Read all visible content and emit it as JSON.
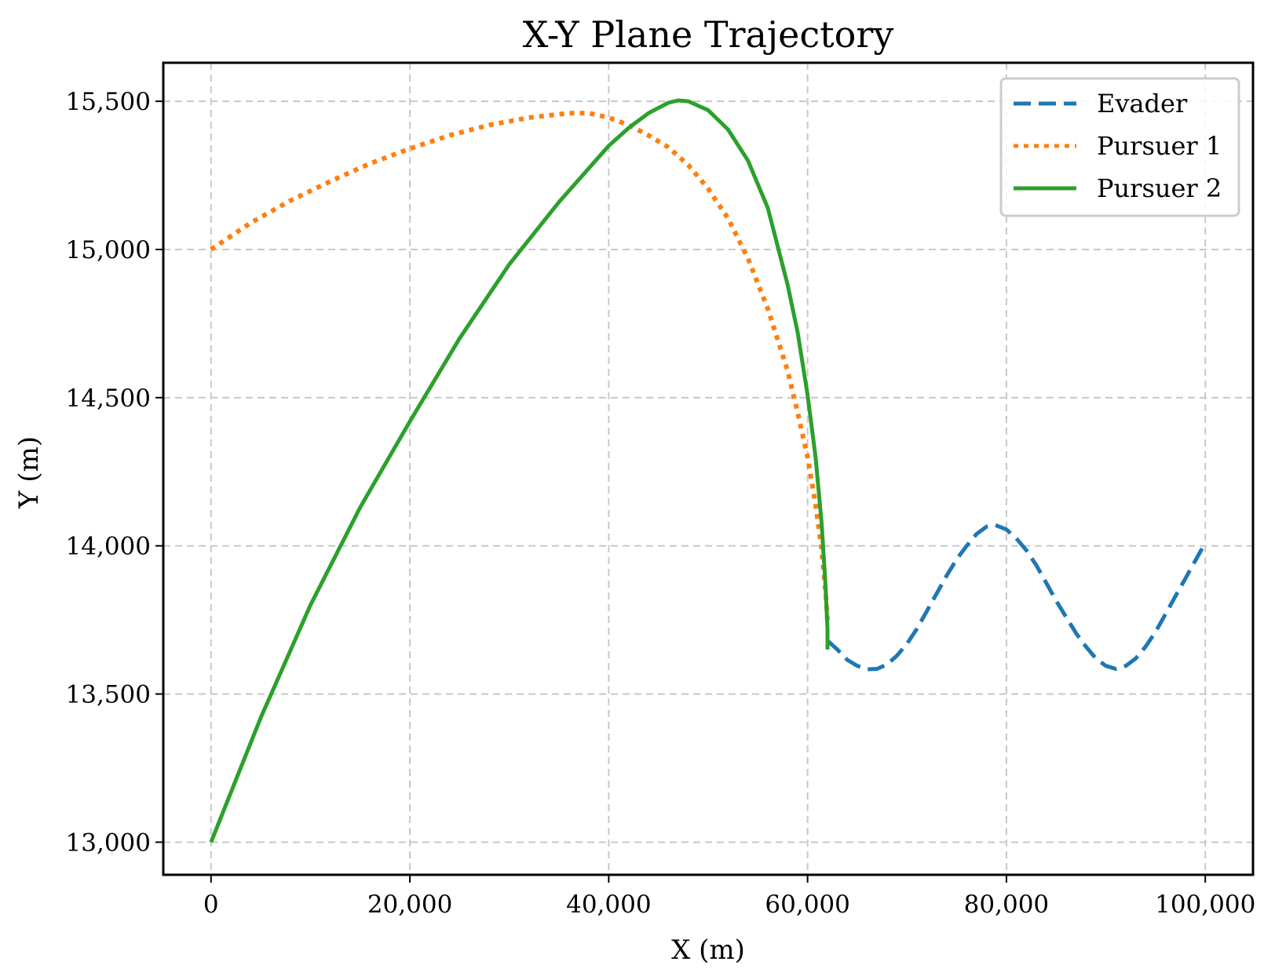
{
  "chart_data": {
    "type": "line",
    "title": "X-Y Plane Trajectory",
    "xlabel": "X (m)",
    "ylabel": "Y (m)",
    "xlim": [
      -4800,
      104800
    ],
    "ylim": [
      12890,
      15630
    ],
    "xticks": [
      0,
      20000,
      40000,
      60000,
      80000,
      100000
    ],
    "xtick_labels": [
      "0",
      "20,000",
      "40,000",
      "60,000",
      "80,000",
      "100,000"
    ],
    "yticks": [
      13000,
      13500,
      14000,
      14500,
      15000,
      15500
    ],
    "ytick_labels": [
      "13,000",
      "13,500",
      "14,000",
      "14,500",
      "15,000",
      "15,500"
    ],
    "grid": true,
    "legend_position": "top-right",
    "series": [
      {
        "name": "Evader",
        "color": "#1f77b4",
        "style": "dashed",
        "x": [
          62000,
          63000,
          64000,
          65000,
          66000,
          67000,
          68000,
          69000,
          70000,
          71000,
          72000,
          73000,
          74000,
          75000,
          76000,
          77000,
          78000,
          78900,
          80000,
          81000,
          82000,
          83000,
          84000,
          85000,
          86000,
          87000,
          88000,
          89000,
          90000,
          91000,
          92000,
          93000,
          94000,
          95000,
          96000,
          97000,
          98000,
          99000,
          100000
        ],
        "y": [
          13680,
          13650,
          13615,
          13595,
          13583,
          13585,
          13600,
          13630,
          13670,
          13720,
          13780,
          13840,
          13900,
          13955,
          14000,
          14040,
          14065,
          14070,
          14055,
          14025,
          13985,
          13935,
          13875,
          13815,
          13760,
          13705,
          13660,
          13620,
          13595,
          13585,
          13595,
          13620,
          13660,
          13710,
          13770,
          13830,
          13890,
          13950,
          14010
        ]
      },
      {
        "name": "Pursuer 1",
        "color": "#ff7f0e",
        "style": "dotted",
        "x": [
          0,
          4000,
          8000,
          12000,
          16000,
          20000,
          24000,
          28000,
          32000,
          36000,
          38000,
          40000,
          42000,
          44000,
          46000,
          48000,
          50000,
          52000,
          54000,
          56000,
          58000,
          59000,
          60000,
          60800,
          61400,
          61800,
          62000
        ],
        "y": [
          15000,
          15090,
          15165,
          15230,
          15290,
          15340,
          15385,
          15420,
          15445,
          15460,
          15460,
          15445,
          15420,
          15385,
          15345,
          15285,
          15205,
          15105,
          14970,
          14800,
          14590,
          14450,
          14300,
          14140,
          13990,
          13850,
          13750
        ]
      },
      {
        "name": "Pursuer 2",
        "color": "#2ca02c",
        "style": "solid",
        "x": [
          0,
          5000,
          10000,
          15000,
          20000,
          25000,
          30000,
          35000,
          40000,
          42000,
          44000,
          46000,
          47000,
          48000,
          50000,
          52000,
          54000,
          56000,
          58000,
          59000,
          60000,
          60800,
          61400,
          61800,
          62000,
          62000
        ],
        "y": [
          13000,
          13420,
          13800,
          14130,
          14420,
          14700,
          14950,
          15160,
          15350,
          15410,
          15460,
          15495,
          15503,
          15500,
          15470,
          15405,
          15300,
          15140,
          14880,
          14720,
          14510,
          14300,
          14080,
          13870,
          13720,
          13650
        ]
      }
    ]
  }
}
